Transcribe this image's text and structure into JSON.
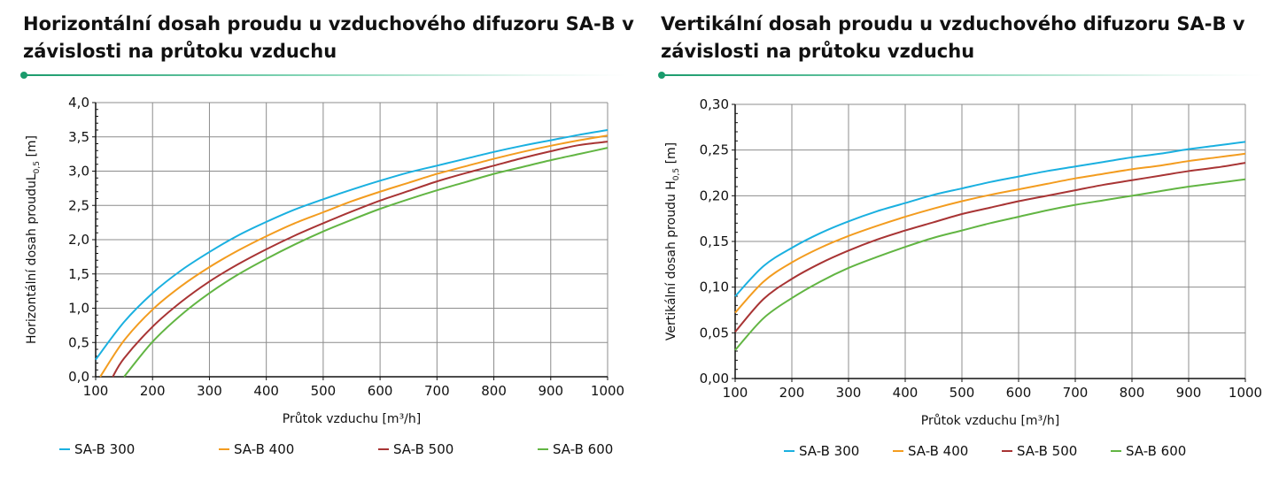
{
  "chart_data": [
    {
      "type": "line",
      "title": "Horizontální dosah proudu u vzduchového difuzoru SA-B v závislosti na průtoku vzduchu",
      "xlabel": "Průtok vzduchu [m³/h]",
      "ylabel": "Horizontální dosah proudu",
      "ylabel_symbol": "L",
      "ylabel_subscript": "0,5",
      "ylabel_unit": "[m]",
      "xlim": [
        100,
        1000
      ],
      "ylim": [
        0,
        4.0
      ],
      "x_ticks": [
        100,
        200,
        300,
        400,
        500,
        600,
        700,
        800,
        900,
        1000
      ],
      "y_ticks": [
        0,
        0.5,
        1.0,
        1.5,
        2.0,
        2.5,
        3.0,
        3.5,
        4.0
      ],
      "y_tick_labels": [
        "0,0",
        "0,5",
        "1,0",
        "1,5",
        "2,0",
        "2,5",
        "3,0",
        "3,5",
        "4,0"
      ],
      "grid": true,
      "legend_position": "bottom",
      "series": [
        {
          "name": "SA-B 300",
          "color": "#1ab0e0",
          "x": [
            100,
            150,
            200,
            250,
            300,
            350,
            400,
            450,
            500,
            550,
            600,
            650,
            700,
            750,
            800,
            850,
            900,
            950,
            1000
          ],
          "y": [
            0.25,
            0.8,
            1.22,
            1.55,
            1.82,
            2.06,
            2.26,
            2.44,
            2.59,
            2.73,
            2.86,
            2.98,
            3.08,
            3.18,
            3.28,
            3.37,
            3.45,
            3.53,
            3.6
          ]
        },
        {
          "name": "SA-B 400",
          "color": "#f39c1f",
          "x": [
            108,
            150,
            200,
            250,
            300,
            350,
            400,
            450,
            500,
            550,
            600,
            650,
            700,
            750,
            800,
            850,
            900,
            950,
            1000
          ],
          "y": [
            0.0,
            0.53,
            0.98,
            1.32,
            1.6,
            1.84,
            2.05,
            2.24,
            2.4,
            2.56,
            2.7,
            2.83,
            2.96,
            3.07,
            3.18,
            3.28,
            3.37,
            3.45,
            3.52
          ]
        },
        {
          "name": "SA-B 500",
          "color": "#a83434",
          "x": [
            130,
            150,
            200,
            250,
            300,
            350,
            400,
            450,
            500,
            550,
            600,
            650,
            700,
            750,
            800,
            850,
            900,
            950,
            1000
          ],
          "y": [
            0.0,
            0.27,
            0.73,
            1.09,
            1.39,
            1.64,
            1.86,
            2.06,
            2.24,
            2.41,
            2.57,
            2.71,
            2.85,
            2.97,
            3.08,
            3.19,
            3.29,
            3.38,
            3.43
          ]
        },
        {
          "name": "SA-B 600",
          "color": "#62b543",
          "x": [
            150,
            200,
            250,
            300,
            350,
            400,
            450,
            500,
            550,
            600,
            650,
            700,
            750,
            800,
            850,
            900,
            950,
            1000
          ],
          "y": [
            0.0,
            0.51,
            0.9,
            1.22,
            1.49,
            1.72,
            1.93,
            2.12,
            2.29,
            2.45,
            2.59,
            2.72,
            2.84,
            2.96,
            3.06,
            3.16,
            3.25,
            3.34
          ]
        }
      ]
    },
    {
      "type": "line",
      "title": "Vertikální dosah proudu u vzduchového difuzoru SA-B v závislosti na průtoku vzduchu",
      "xlabel": "Průtok vzduchu [m³/h]",
      "ylabel": "Vertikální dosah proudu H",
      "ylabel_symbol": "",
      "ylabel_subscript": "0,5",
      "ylabel_unit": "[m]",
      "xlim": [
        100,
        1000
      ],
      "ylim": [
        0,
        0.3
      ],
      "x_ticks": [
        100,
        200,
        300,
        400,
        500,
        600,
        700,
        800,
        900,
        1000
      ],
      "y_ticks": [
        0,
        0.05,
        0.1,
        0.15,
        0.2,
        0.25,
        0.3
      ],
      "y_tick_labels": [
        "0,00",
        "0,05",
        "0,10",
        "0,15",
        "0,20",
        "0,25",
        "0,30"
      ],
      "grid": true,
      "legend_position": "bottom",
      "series": [
        {
          "name": "SA-B 300",
          "color": "#1ab0e0",
          "x": [
            100,
            150,
            200,
            250,
            300,
            350,
            400,
            450,
            500,
            550,
            600,
            650,
            700,
            750,
            800,
            850,
            900,
            950,
            1000
          ],
          "y": [
            0.09,
            0.123,
            0.143,
            0.159,
            0.172,
            0.183,
            0.192,
            0.201,
            0.208,
            0.215,
            0.221,
            0.227,
            0.232,
            0.237,
            0.242,
            0.246,
            0.251,
            0.255,
            0.259
          ]
        },
        {
          "name": "SA-B 400",
          "color": "#f39c1f",
          "x": [
            100,
            150,
            200,
            250,
            300,
            350,
            400,
            450,
            500,
            550,
            600,
            650,
            700,
            750,
            800,
            850,
            900,
            950,
            1000
          ],
          "y": [
            0.072,
            0.106,
            0.127,
            0.143,
            0.156,
            0.167,
            0.177,
            0.186,
            0.194,
            0.201,
            0.207,
            0.213,
            0.219,
            0.224,
            0.229,
            0.233,
            0.238,
            0.242,
            0.246
          ]
        },
        {
          "name": "SA-B 500",
          "color": "#a83434",
          "x": [
            100,
            150,
            200,
            250,
            300,
            350,
            400,
            450,
            500,
            550,
            600,
            650,
            700,
            750,
            800,
            850,
            900,
            950,
            1000
          ],
          "y": [
            0.051,
            0.087,
            0.109,
            0.126,
            0.14,
            0.152,
            0.162,
            0.171,
            0.18,
            0.187,
            0.194,
            0.2,
            0.206,
            0.212,
            0.217,
            0.222,
            0.227,
            0.231,
            0.236
          ]
        },
        {
          "name": "SA-B 600",
          "color": "#62b543",
          "x": [
            100,
            150,
            200,
            250,
            300,
            350,
            400,
            450,
            500,
            550,
            600,
            650,
            700,
            750,
            800,
            850,
            900,
            950,
            1000
          ],
          "y": [
            0.031,
            0.066,
            0.088,
            0.106,
            0.121,
            0.133,
            0.144,
            0.154,
            0.162,
            0.17,
            0.177,
            0.184,
            0.19,
            0.195,
            0.2,
            0.205,
            0.21,
            0.214,
            0.218
          ]
        }
      ]
    }
  ]
}
